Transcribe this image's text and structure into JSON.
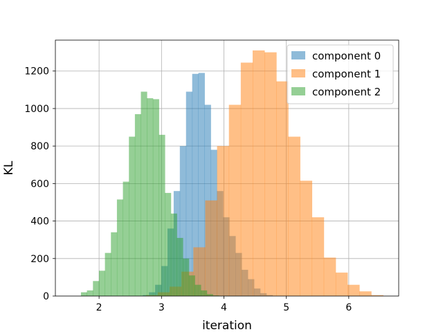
{
  "chart_data": {
    "type": "histogram",
    "title": "",
    "xlabel": "iteration",
    "ylabel": "KL",
    "xlim": [
      1.3,
      6.8
    ],
    "ylim": [
      0,
      1365
    ],
    "xticks": [
      2,
      3,
      4,
      5,
      6
    ],
    "yticks": [
      0,
      200,
      400,
      600,
      800,
      1000,
      1200
    ],
    "grid": true,
    "legend_position": "top-right",
    "series": [
      {
        "name": "component 0",
        "color": "#1f77b4",
        "bin_start": 2.7,
        "bin_width": 0.099,
        "values": [
          5,
          20,
          60,
          160,
          360,
          560,
          800,
          1090,
          1185,
          1190,
          1020,
          780,
          560,
          420,
          320,
          230,
          140,
          90,
          40,
          15,
          5
        ]
      },
      {
        "name": "component 1",
        "color": "#ff7f0e",
        "bin_start": 2.75,
        "bin_width": 0.19,
        "values": [
          5,
          20,
          50,
          130,
          260,
          510,
          800,
          1020,
          1245,
          1310,
          1300,
          1145,
          850,
          615,
          420,
          205,
          125,
          60,
          25,
          5
        ]
      },
      {
        "name": "component 2",
        "color": "#2ca02c",
        "bin_start": 1.71,
        "bin_width": 0.096,
        "values": [
          20,
          30,
          80,
          135,
          230,
          340,
          515,
          610,
          850,
          970,
          1090,
          1055,
          1050,
          860,
          550,
          440,
          310,
          200,
          110,
          60,
          30,
          10,
          3
        ]
      }
    ]
  }
}
